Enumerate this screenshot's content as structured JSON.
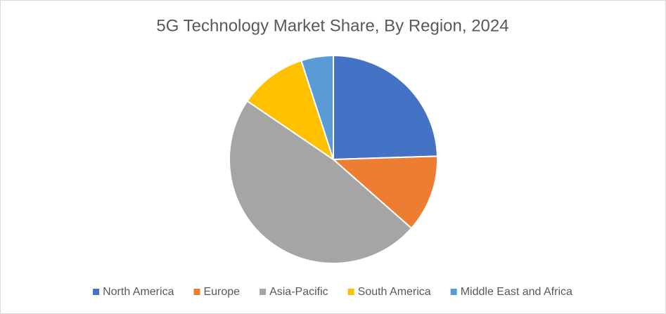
{
  "chart_data": {
    "type": "pie",
    "title": "5G Technology Market Share, By Region, 2024",
    "categories": [
      "North America",
      "Europe",
      "Asia-Pacific",
      "South America",
      "Middle East and Africa"
    ],
    "values": [
      24.5,
      12,
      48,
      10.5,
      5
    ],
    "colors": [
      "#4472c4",
      "#ed7d31",
      "#a5a5a5",
      "#ffc000",
      "#5b9bd5"
    ],
    "legend": "bottom"
  }
}
